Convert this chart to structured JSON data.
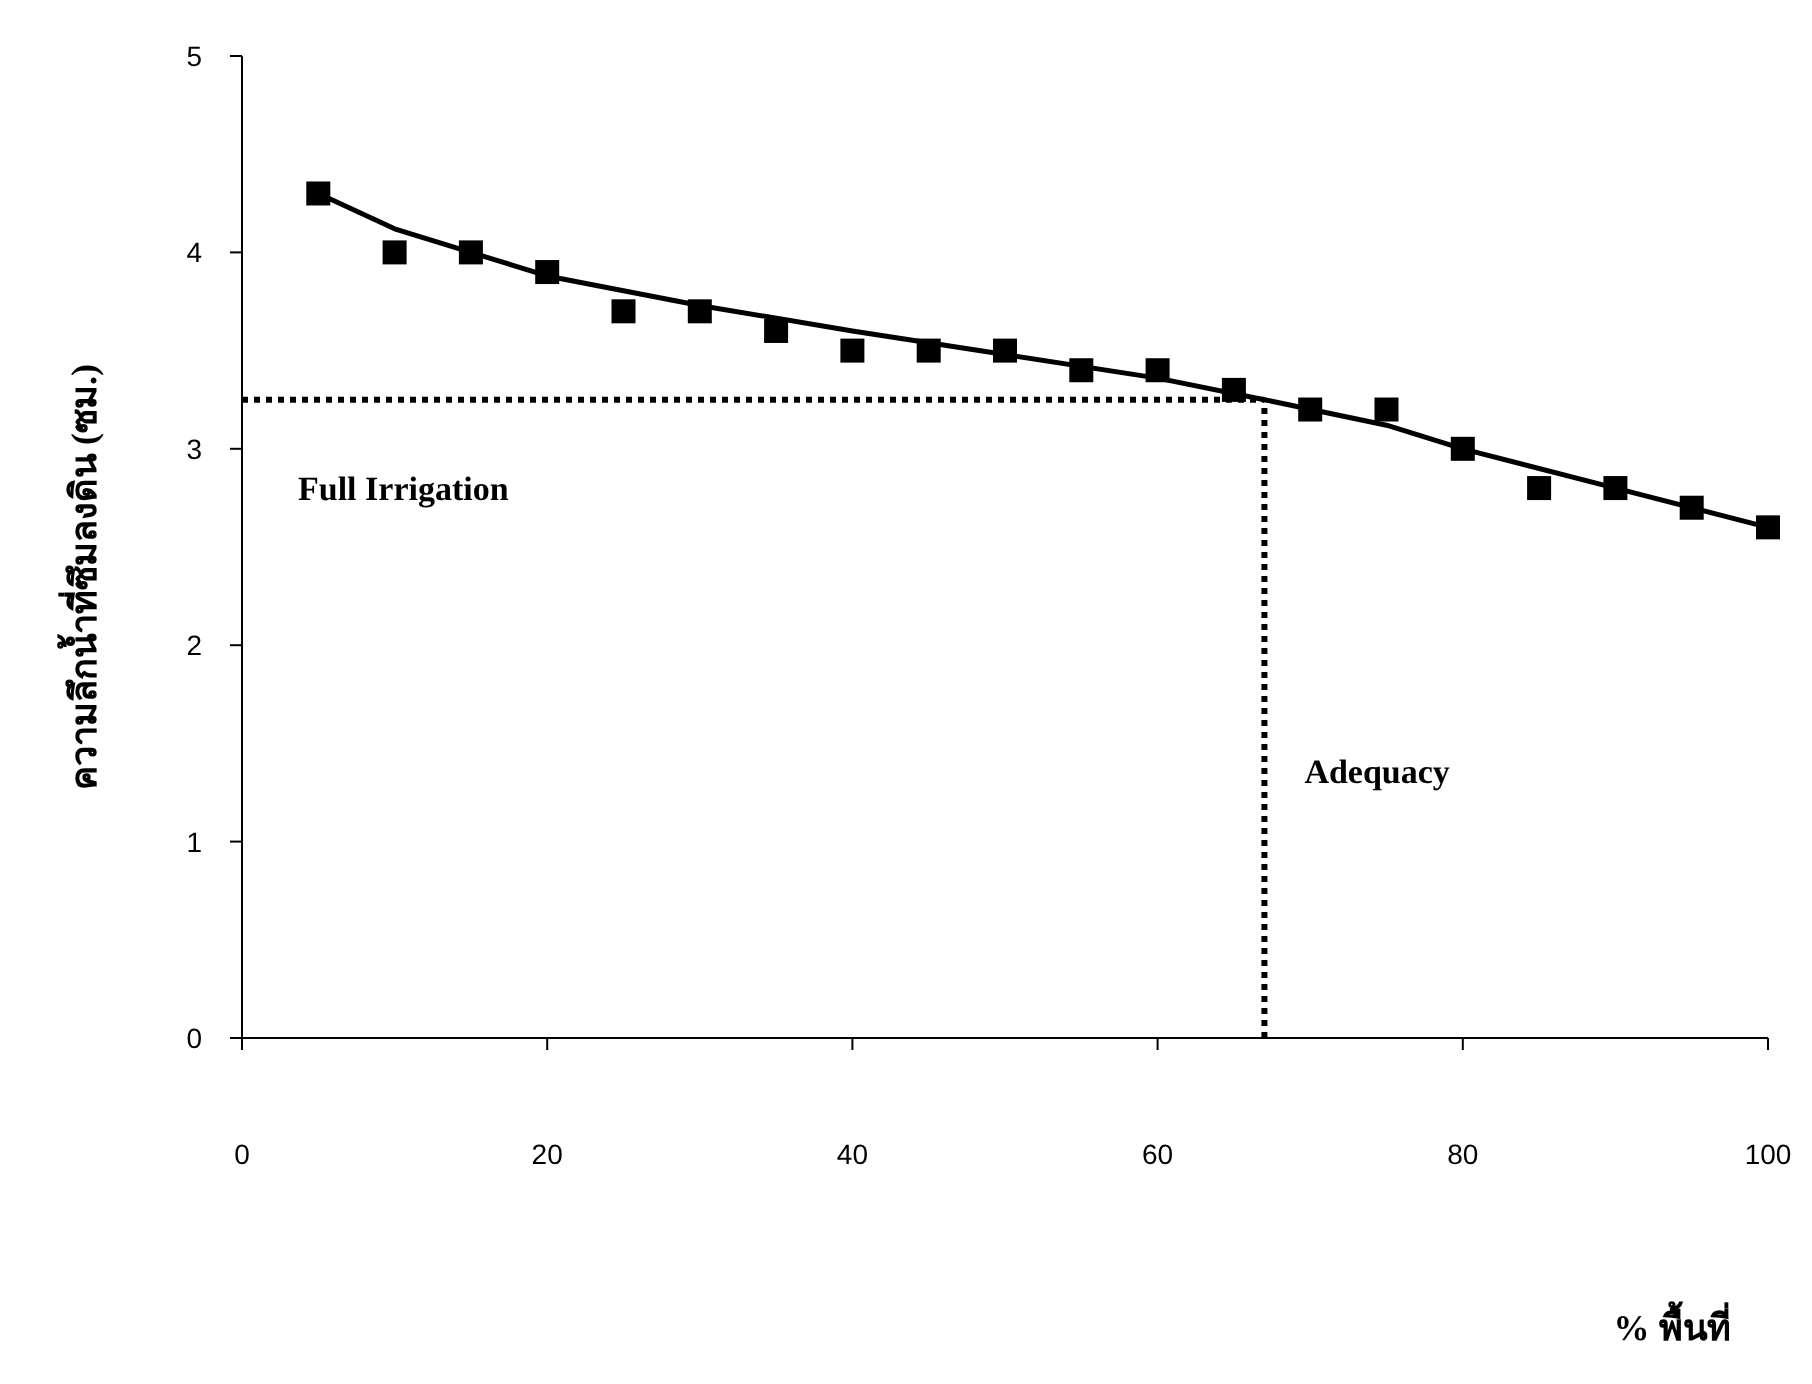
{
  "chart_data": {
    "type": "scatter",
    "xlabel": "% พื้นที่",
    "ylabel": "ความลึกน้ำที่ซึมลงดิน (ซม.)",
    "xlim": [
      0,
      100
    ],
    "xticks": [
      0,
      20,
      40,
      60,
      80,
      100
    ],
    "ylim": [
      0,
      5
    ],
    "yticks": [
      0,
      1,
      2,
      3,
      4,
      5
    ],
    "series": [
      {
        "color": "#000000",
        "marker": "square",
        "x": [
          5,
          10,
          15,
          20,
          25,
          30,
          35,
          40,
          45,
          50,
          55,
          60,
          65,
          70,
          75,
          80,
          85,
          90,
          95,
          100
        ],
        "values": [
          4.3,
          4.0,
          4.0,
          3.9,
          3.7,
          3.7,
          3.6,
          3.5,
          3.5,
          3.5,
          3.4,
          3.4,
          3.3,
          3.2,
          3.2,
          3.0,
          2.8,
          2.8,
          2.7,
          2.6
        ]
      },
      {
        "type": "line",
        "color": "#000000",
        "marker": "none",
        "line_style": "solid",
        "x": [
          5,
          10,
          15,
          20,
          30,
          40,
          50,
          60,
          67,
          75,
          80,
          90,
          100
        ],
        "values": [
          4.3,
          4.12,
          4.0,
          3.88,
          3.73,
          3.6,
          3.48,
          3.36,
          3.25,
          3.12,
          3.0,
          2.8,
          2.6
        ]
      }
    ],
    "ref_lines": [
      {
        "axis": "y",
        "value": 3.25,
        "label": "Full Irrigation",
        "color": "#000000",
        "line_style": "dotted"
      },
      {
        "axis": "x",
        "value": 67,
        "label": "Adequacy",
        "color": "#000000",
        "line_style": "dotted"
      }
    ],
    "grid": false
  }
}
